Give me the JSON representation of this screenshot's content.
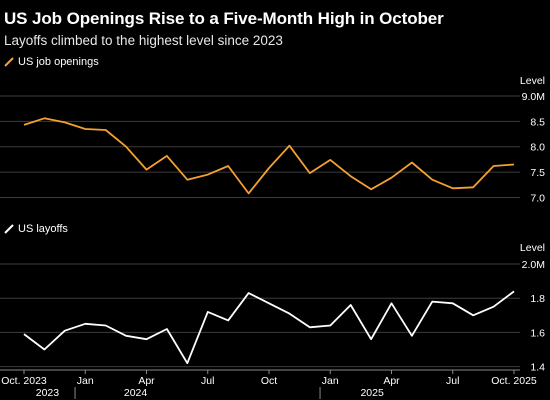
{
  "title": "US Job Openings Rise to a Five-Month High in October",
  "subtitle": "Layoffs climbed to the highest level since 2023",
  "x_axis": {
    "month_labels": [
      "Oct. 2023",
      "Jan",
      "Apr",
      "Jul",
      "Oct",
      "Jan",
      "Apr",
      "Jul",
      "Oct. 2025"
    ],
    "year_labels": [
      "2023",
      "2024",
      "2025"
    ]
  },
  "chart_data": [
    {
      "type": "line",
      "title": "",
      "legend": "US job openings",
      "ylabel": "Level",
      "color": "#f5a030",
      "y_ticks": [
        "9.0M",
        "8.5",
        "8.0",
        "7.5",
        "7.0"
      ],
      "ylim": [
        6.95,
        9.0
      ],
      "x": [
        "2023-10",
        "2023-11",
        "2023-12",
        "2024-01",
        "2024-02",
        "2024-03",
        "2024-04",
        "2024-05",
        "2024-06",
        "2024-07",
        "2024-08",
        "2024-09",
        "2024-10",
        "2024-11",
        "2024-12",
        "2025-01",
        "2025-02",
        "2025-03",
        "2025-04",
        "2025-05",
        "2025-06",
        "2025-07",
        "2025-08",
        "2025-09",
        "2025-10"
      ],
      "values": [
        8.43,
        8.56,
        8.48,
        8.35,
        8.33,
        8.0,
        7.55,
        7.82,
        7.35,
        7.45,
        7.62,
        7.08,
        7.58,
        8.02,
        7.48,
        7.74,
        7.42,
        7.16,
        7.39,
        7.69,
        7.35,
        7.18,
        7.2,
        7.62,
        7.65
      ]
    },
    {
      "type": "line",
      "title": "",
      "legend": "US layoffs",
      "ylabel": "Level",
      "color": "#ffffff",
      "y_ticks": [
        "2.0M",
        "1.8",
        "1.6",
        "1.4"
      ],
      "ylim": [
        1.38,
        2.0
      ],
      "x": [
        "2023-10",
        "2023-11",
        "2023-12",
        "2024-01",
        "2024-02",
        "2024-03",
        "2024-04",
        "2024-05",
        "2024-06",
        "2024-07",
        "2024-08",
        "2024-09",
        "2024-10",
        "2024-11",
        "2024-12",
        "2025-01",
        "2025-02",
        "2025-03",
        "2025-04",
        "2025-05",
        "2025-06",
        "2025-07",
        "2025-08",
        "2025-09",
        "2025-10"
      ],
      "values": [
        1.59,
        1.5,
        1.61,
        1.65,
        1.64,
        1.58,
        1.56,
        1.62,
        1.42,
        1.72,
        1.67,
        1.83,
        1.77,
        1.71,
        1.63,
        1.64,
        1.76,
        1.56,
        1.77,
        1.58,
        1.78,
        1.77,
        1.7,
        1.75,
        1.84
      ]
    }
  ]
}
